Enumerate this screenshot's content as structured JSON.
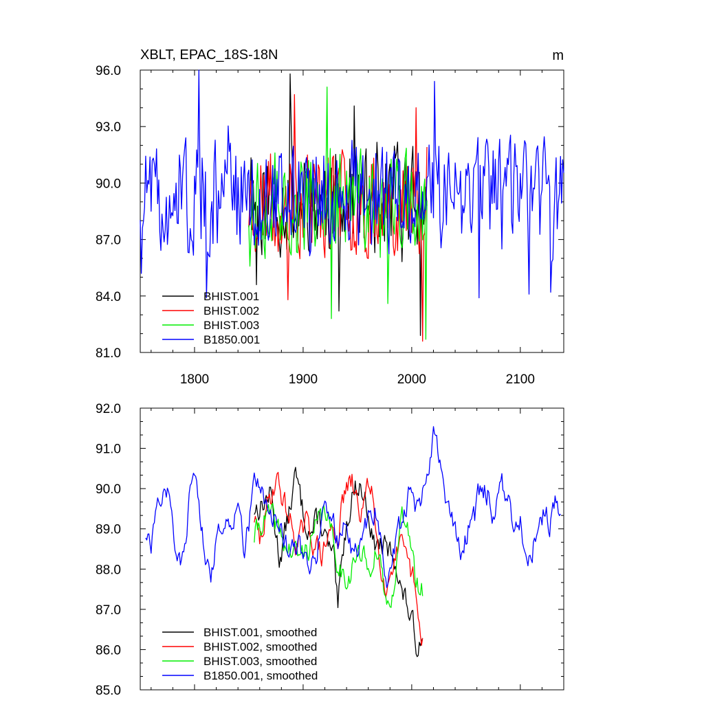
{
  "chart_data": [
    {
      "type": "line",
      "title": "XBLT, EPAC_18S-18N",
      "units": "m",
      "xlim": [
        1750,
        2140
      ],
      "ylim": [
        81.0,
        96.0
      ],
      "xticks": [
        1800,
        1900,
        2000,
        2100
      ],
      "yticks": [
        "81.0",
        "84.0",
        "87.0",
        "90.0",
        "93.0",
        "96.0"
      ],
      "legend": "bottom-left",
      "series": [
        {
          "name": "BHIST.001",
          "color": "#000000",
          "x_start": 1850,
          "x_end": 2014,
          "mean": 89.0,
          "amp": 2.6,
          "seed": 11
        },
        {
          "name": "BHIST.002",
          "color": "#ff0000",
          "x_start": 1850,
          "x_end": 2014,
          "mean": 89.0,
          "amp": 2.6,
          "seed": 23
        },
        {
          "name": "BHIST.003",
          "color": "#00ee00",
          "x_start": 1850,
          "x_end": 2014,
          "mean": 89.0,
          "amp": 2.5,
          "seed": 37
        },
        {
          "name": "B1850.001",
          "color": "#0000ff",
          "x_start": 1750,
          "x_end": 2140,
          "mean": 89.3,
          "amp": 2.6,
          "seed": 51
        }
      ],
      "anchors": {
        "BHIST.001": [
          [
            1888,
            95.8
          ],
          [
            1947,
            94.1
          ],
          [
            1933,
            83.2
          ],
          [
            2008,
            81.9
          ],
          [
            1857,
            84.6
          ]
        ],
        "BHIST.002": [
          [
            1892,
            94.7
          ],
          [
            2004,
            94.0
          ],
          [
            1886,
            83.8
          ],
          [
            2010,
            81.6
          ]
        ],
        "BHIST.003": [
          [
            1922,
            95.1
          ],
          [
            1926,
            82.8
          ],
          [
            2013,
            81.7
          ],
          [
            1978,
            83.6
          ]
        ],
        "B1850.001": [
          [
            1804,
            96.0
          ],
          [
            2021,
            95.4
          ],
          [
            1751,
            85.2
          ],
          [
            1811,
            83.9
          ],
          [
            2062,
            83.9
          ],
          [
            2128,
            84.2
          ],
          [
            2108,
            84.1
          ]
        ]
      }
    },
    {
      "type": "line",
      "xlim": [
        1750,
        2140
      ],
      "ylim": [
        85.0,
        92.0
      ],
      "yticks": [
        "85.0",
        "86.0",
        "87.0",
        "88.0",
        "89.0",
        "90.0",
        "91.0",
        "92.0"
      ],
      "legend": "bottom-left",
      "series": [
        {
          "name": "BHIST.001, smoothed",
          "color": "#000000",
          "x_start": 1855,
          "seed": 13,
          "jitter": 0.28,
          "anchors": [
            [
              1855,
              89.5
            ],
            [
              1862,
              89.6
            ],
            [
              1870,
              89.9
            ],
            [
              1878,
              88.3
            ],
            [
              1885,
              89.1
            ],
            [
              1893,
              90.3
            ],
            [
              1900,
              89.4
            ],
            [
              1908,
              88.9
            ],
            [
              1915,
              89.3
            ],
            [
              1922,
              88.6
            ],
            [
              1928,
              88.2
            ],
            [
              1932,
              86.9
            ],
            [
              1938,
              88.8
            ],
            [
              1945,
              89.9
            ],
            [
              1952,
              90.1
            ],
            [
              1960,
              89.5
            ],
            [
              1965,
              88.6
            ],
            [
              1972,
              88.6
            ],
            [
              1978,
              88.4
            ],
            [
              1985,
              88.3
            ],
            [
              1990,
              87.5
            ],
            [
              1997,
              87.0
            ],
            [
              2003,
              86.3
            ],
            [
              2006,
              86.0
            ],
            [
              2010,
              86.7
            ]
          ]
        },
        {
          "name": "BHIST.002, smoothed",
          "color": "#ff0000",
          "x_start": 1855,
          "seed": 29,
          "jitter": 0.28,
          "anchors": [
            [
              1855,
              89.3
            ],
            [
              1860,
              88.6
            ],
            [
              1868,
              89.6
            ],
            [
              1875,
              90.3
            ],
            [
              1882,
              89.7
            ],
            [
              1888,
              89.2
            ],
            [
              1895,
              88.6
            ],
            [
              1902,
              89.1
            ],
            [
              1910,
              88.7
            ],
            [
              1918,
              88.3
            ],
            [
              1925,
              89.0
            ],
            [
              1932,
              88.8
            ],
            [
              1938,
              89.9
            ],
            [
              1945,
              90.1
            ],
            [
              1952,
              89.4
            ],
            [
              1958,
              89.8
            ],
            [
              1963,
              90.2
            ],
            [
              1968,
              88.7
            ],
            [
              1972,
              88.2
            ],
            [
              1977,
              87.5
            ],
            [
              1983,
              88.3
            ],
            [
              1990,
              88.5
            ],
            [
              1996,
              88.0
            ],
            [
              2002,
              87.7
            ],
            [
              2005,
              86.9
            ],
            [
              2008,
              86.1
            ],
            [
              2010,
              86.3
            ]
          ]
        },
        {
          "name": "BHIST.003, smoothed",
          "color": "#00ee00",
          "x_start": 1855,
          "seed": 41,
          "jitter": 0.28,
          "anchors": [
            [
              1855,
              88.8
            ],
            [
              1862,
              89.2
            ],
            [
              1870,
              89.3
            ],
            [
              1878,
              88.9
            ],
            [
              1885,
              88.5
            ],
            [
              1892,
              88.4
            ],
            [
              1898,
              88.3
            ],
            [
              1905,
              88.6
            ],
            [
              1912,
              89.0
            ],
            [
              1918,
              89.3
            ],
            [
              1922,
              89.5
            ],
            [
              1928,
              88.5
            ],
            [
              1935,
              88.0
            ],
            [
              1942,
              87.8
            ],
            [
              1948,
              88.3
            ],
            [
              1955,
              88.3
            ],
            [
              1960,
              87.9
            ],
            [
              1966,
              88.6
            ],
            [
              1972,
              87.8
            ],
            [
              1978,
              87.0
            ],
            [
              1985,
              88.0
            ],
            [
              1990,
              89.1
            ],
            [
              1995,
              89.4
            ],
            [
              2000,
              88.5
            ],
            [
              2004,
              87.5
            ],
            [
              2008,
              87.5
            ],
            [
              2010,
              87.4
            ]
          ]
        },
        {
          "name": "B1850.001, smoothed",
          "color": "#0000ff",
          "x_start": 1755,
          "seed": 57,
          "jitter": 0.26,
          "anchors": [
            [
              1755,
              88.9
            ],
            [
              1760,
              88.5
            ],
            [
              1766,
              89.5
            ],
            [
              1772,
              90.3
            ],
            [
              1778,
              89.6
            ],
            [
              1783,
              88.4
            ],
            [
              1788,
              88.0
            ],
            [
              1795,
              89.6
            ],
            [
              1800,
              90.5
            ],
            [
              1805,
              89.4
            ],
            [
              1810,
              88.5
            ],
            [
              1815,
              88.0
            ],
            [
              1822,
              88.8
            ],
            [
              1830,
              89.4
            ],
            [
              1835,
              89.3
            ],
            [
              1840,
              89.9
            ],
            [
              1846,
              88.5
            ],
            [
              1852,
              89.5
            ],
            [
              1858,
              90.4
            ],
            [
              1865,
              89.5
            ],
            [
              1872,
              89.2
            ],
            [
              1880,
              89.0
            ],
            [
              1888,
              88.2
            ],
            [
              1895,
              88.7
            ],
            [
              1902,
              88.2
            ],
            [
              1910,
              88.0
            ],
            [
              1918,
              89.3
            ],
            [
              1925,
              89.5
            ],
            [
              1932,
              88.7
            ],
            [
              1938,
              89.0
            ],
            [
              1945,
              88.5
            ],
            [
              1952,
              88.5
            ],
            [
              1960,
              89.2
            ],
            [
              1967,
              89.5
            ],
            [
              1972,
              88.7
            ],
            [
              1978,
              87.5
            ],
            [
              1985,
              88.7
            ],
            [
              1992,
              89.3
            ],
            [
              1998,
              90.0
            ],
            [
              2004,
              89.6
            ],
            [
              2010,
              89.9
            ],
            [
              2016,
              90.2
            ],
            [
              2020,
              91.2
            ],
            [
              2024,
              90.8
            ],
            [
              2028,
              90.3
            ],
            [
              2034,
              89.6
            ],
            [
              2040,
              88.9
            ],
            [
              2046,
              88.3
            ],
            [
              2052,
              89.0
            ],
            [
              2058,
              89.3
            ],
            [
              2064,
              90.1
            ],
            [
              2070,
              89.9
            ],
            [
              2076,
              89.3
            ],
            [
              2083,
              90.0
            ],
            [
              2089,
              89.6
            ],
            [
              2095,
              88.8
            ],
            [
              2100,
              89.3
            ],
            [
              2104,
              88.3
            ],
            [
              2110,
              88.1
            ],
            [
              2116,
              89.3
            ],
            [
              2122,
              89.4
            ],
            [
              2127,
              89.2
            ],
            [
              2132,
              89.6
            ],
            [
              2137,
              89.5
            ]
          ]
        }
      ]
    }
  ]
}
